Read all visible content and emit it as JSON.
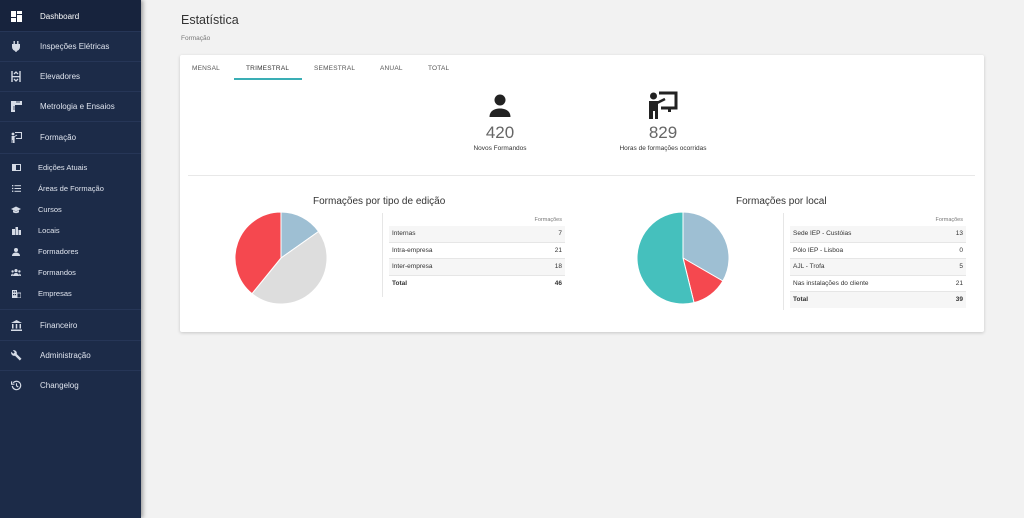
{
  "sidebar": {
    "items": [
      {
        "label": "Dashboard",
        "icon": "dashboard-icon"
      },
      {
        "label": "Inspeções Elétricas",
        "icon": "plug-icon"
      },
      {
        "label": "Elevadores",
        "icon": "elevator-icon"
      },
      {
        "label": "Metrologia e Ensaios",
        "icon": "ruler-icon"
      },
      {
        "label": "Formação",
        "icon": "presentation-icon"
      }
    ],
    "sub_items": [
      {
        "label": "Edições Atuais",
        "icon": "card-icon"
      },
      {
        "label": "Áreas de Formação",
        "icon": "list-icon"
      },
      {
        "label": "Cursos",
        "icon": "graduation-cap-icon"
      },
      {
        "label": "Locais",
        "icon": "buildings-icon"
      },
      {
        "label": "Formadores",
        "icon": "person-icon"
      },
      {
        "label": "Formandos",
        "icon": "people-icon"
      },
      {
        "label": "Empresas",
        "icon": "company-icon"
      }
    ],
    "bottom_items": [
      {
        "label": "Financeiro",
        "icon": "bank-icon"
      },
      {
        "label": "Administração",
        "icon": "wrench-icon"
      },
      {
        "label": "Changelog",
        "icon": "history-icon"
      }
    ]
  },
  "header": {
    "title": "Estatística",
    "subtitle": "Formação"
  },
  "tabs": [
    {
      "label": "MENSAL",
      "active": false
    },
    {
      "label": "TRIMESTRAL",
      "active": true
    },
    {
      "label": "SEMESTRAL",
      "active": false
    },
    {
      "label": "ANUAL",
      "active": false
    },
    {
      "label": "TOTAL",
      "active": false
    }
  ],
  "stats": [
    {
      "value": "420",
      "caption": "Novos Formandos",
      "icon": "person-icon"
    },
    {
      "value": "829",
      "caption": "Horas de formações ocorridas",
      "icon": "presentation-icon"
    }
  ],
  "colors": {
    "accent": "#3aaeb5",
    "sidebar": "#1c2b48",
    "red": "#f5484f",
    "grey": "#dddddd",
    "blue": "#9ebfd3",
    "teal": "#45c0bd"
  },
  "chart_data": [
    {
      "type": "pie",
      "title": "Formações por tipo de edição",
      "column_header": "Formações",
      "rows": [
        {
          "label": "Internas",
          "value": 7,
          "color": "#9ebfd3"
        },
        {
          "label": "Intra-empresa",
          "value": 21,
          "color": "#dddddd"
        },
        {
          "label": "Inter-empresa",
          "value": 18,
          "color": "#f5484f"
        }
      ],
      "total_label": "Total",
      "total": 46
    },
    {
      "type": "pie",
      "title": "Formações por local",
      "column_header": "Formações",
      "rows": [
        {
          "label": "Sede IEP - Custóias",
          "value": 13,
          "color": "#9ebfd3"
        },
        {
          "label": "Pólo IEP - Lisboa",
          "value": 0,
          "color": "#dddddd"
        },
        {
          "label": "AJL - Trofa",
          "value": 5,
          "color": "#f5484f"
        },
        {
          "label": "Nas instalações do cliente",
          "value": 21,
          "color": "#45c0bd"
        }
      ],
      "total_label": "Total",
      "total": 39
    }
  ]
}
